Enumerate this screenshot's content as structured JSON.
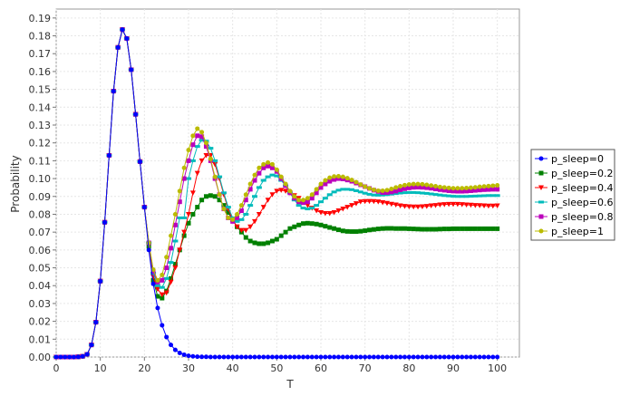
{
  "chart_data": {
    "type": "line",
    "title": "",
    "xlabel": "T",
    "ylabel": "Probability",
    "xlim": [
      0,
      105
    ],
    "ylim": [
      0,
      0.195
    ],
    "x_ticks": [
      0,
      10,
      20,
      30,
      40,
      50,
      60,
      70,
      80,
      90,
      100
    ],
    "y_ticks": [
      0.0,
      0.01,
      0.02,
      0.03,
      0.04,
      0.05,
      0.06,
      0.07,
      0.08,
      0.09,
      0.1,
      0.11,
      0.12,
      0.13,
      0.14,
      0.15,
      0.16,
      0.17,
      0.18,
      0.19
    ],
    "x_tick_labels": [
      "0",
      "10",
      "20",
      "30",
      "40",
      "50",
      "60",
      "70",
      "80",
      "90",
      "100"
    ],
    "y_tick_labels": [
      "0.00",
      "0.01",
      "0.02",
      "0.03",
      "0.04",
      "0.05",
      "0.06",
      "0.07",
      "0.08",
      "0.09",
      "0.10",
      "0.11",
      "0.12",
      "0.13",
      "0.14",
      "0.15",
      "0.16",
      "0.17",
      "0.18",
      "0.19"
    ],
    "grid": true,
    "legend_position": "right",
    "x_start": 0,
    "x_end": 100,
    "series": [
      {
        "name": "p_sleep=0",
        "color": "#0000ff",
        "marker": "circle",
        "values": [
          0.0,
          0.0,
          0.0,
          0.0,
          0.0,
          0.0001,
          0.0004,
          0.0015,
          0.0068,
          0.0195,
          0.0425,
          0.0755,
          0.113,
          0.149,
          0.1735,
          0.1835,
          0.1785,
          0.161,
          0.136,
          0.1095,
          0.084,
          0.06,
          0.041,
          0.0275,
          0.0178,
          0.0112,
          0.0068,
          0.004,
          0.0023,
          0.0013,
          0.0007,
          0.0004,
          0.0002,
          0.0001,
          0.0001,
          0.0,
          0.0,
          0.0,
          0.0,
          0.0,
          0.0,
          0.0,
          0.0,
          0.0,
          0.0,
          0.0,
          0.0,
          0.0,
          0.0,
          0.0,
          0.0,
          0.0,
          0.0,
          0.0,
          0.0,
          0.0,
          0.0,
          0.0,
          0.0,
          0.0,
          0.0,
          0.0,
          0.0,
          0.0,
          0.0,
          0.0,
          0.0,
          0.0,
          0.0,
          0.0,
          0.0,
          0.0,
          0.0,
          0.0,
          0.0,
          0.0,
          0.0,
          0.0,
          0.0,
          0.0,
          0.0,
          0.0,
          0.0,
          0.0,
          0.0,
          0.0,
          0.0,
          0.0,
          0.0,
          0.0,
          0.0,
          0.0,
          0.0,
          0.0,
          0.0,
          0.0,
          0.0,
          0.0,
          0.0,
          0.0,
          0.0
        ]
      },
      {
        "name": "p_sleep=0.2",
        "color": "#008000",
        "marker": "square",
        "values": [
          0.0,
          0.0,
          0.0,
          0.0,
          0.0,
          0.0001,
          0.0004,
          0.0015,
          0.0068,
          0.0195,
          0.0425,
          0.0755,
          0.113,
          0.149,
          0.1735,
          0.1835,
          0.1785,
          0.161,
          0.136,
          0.1095,
          0.084,
          0.062,
          0.043,
          0.034,
          0.033,
          0.037,
          0.044,
          0.052,
          0.06,
          0.068,
          0.075,
          0.08,
          0.084,
          0.088,
          0.09,
          0.0905,
          0.09,
          0.088,
          0.085,
          0.081,
          0.077,
          0.073,
          0.07,
          0.067,
          0.065,
          0.064,
          0.0635,
          0.0635,
          0.064,
          0.065,
          0.066,
          0.068,
          0.07,
          0.072,
          0.073,
          0.074,
          0.0748,
          0.075,
          0.0748,
          0.0745,
          0.074,
          0.0733,
          0.0726,
          0.072,
          0.0713,
          0.0707,
          0.0704,
          0.0703,
          0.0703,
          0.0705,
          0.0708,
          0.0712,
          0.0715,
          0.0718,
          0.072,
          0.0721,
          0.0721,
          0.072,
          0.072,
          0.072,
          0.0719,
          0.0718,
          0.0717,
          0.0716,
          0.0716,
          0.0716,
          0.0716,
          0.0717,
          0.0718,
          0.0718,
          0.0719,
          0.0719,
          0.0719,
          0.0719,
          0.0719,
          0.0719,
          0.0719,
          0.0719,
          0.0719,
          0.0719,
          0.0719
        ]
      },
      {
        "name": "p_sleep=0.4",
        "color": "#ff0000",
        "marker": "triangle-down",
        "values": [
          0.0,
          0.0,
          0.0,
          0.0,
          0.0,
          0.0001,
          0.0004,
          0.0015,
          0.0068,
          0.0195,
          0.0425,
          0.0755,
          0.113,
          0.149,
          0.1735,
          0.1835,
          0.1785,
          0.161,
          0.136,
          0.1095,
          0.084,
          0.063,
          0.045,
          0.038,
          0.035,
          0.036,
          0.042,
          0.05,
          0.06,
          0.07,
          0.08,
          0.092,
          0.103,
          0.11,
          0.113,
          0.113,
          0.108,
          0.1,
          0.091,
          0.083,
          0.077,
          0.073,
          0.071,
          0.071,
          0.073,
          0.076,
          0.08,
          0.084,
          0.088,
          0.091,
          0.093,
          0.0935,
          0.093,
          0.092,
          0.0905,
          0.089,
          0.087,
          0.085,
          0.0835,
          0.082,
          0.081,
          0.0805,
          0.0805,
          0.081,
          0.082,
          0.083,
          0.084,
          0.085,
          0.086,
          0.087,
          0.0872,
          0.0873,
          0.0872,
          0.087,
          0.0866,
          0.0862,
          0.0857,
          0.0853,
          0.0848,
          0.0845,
          0.0843,
          0.0842,
          0.0842,
          0.0843,
          0.0845,
          0.0848,
          0.085,
          0.0853,
          0.0855,
          0.0856,
          0.0856,
          0.0856,
          0.0855,
          0.0853,
          0.0852,
          0.085,
          0.0849,
          0.0848,
          0.0847,
          0.0847,
          0.0848
        ]
      },
      {
        "name": "p_sleep=0.6",
        "color": "#00bbbb",
        "marker": "dash",
        "values": [
          0.0,
          0.0,
          0.0,
          0.0,
          0.0,
          0.0001,
          0.0004,
          0.0015,
          0.0068,
          0.0195,
          0.0425,
          0.0755,
          0.113,
          0.149,
          0.1735,
          0.1835,
          0.1785,
          0.161,
          0.136,
          0.1095,
          0.084,
          0.064,
          0.047,
          0.04,
          0.039,
          0.044,
          0.053,
          0.065,
          0.078,
          0.078,
          0.1,
          0.11,
          0.118,
          0.1215,
          0.121,
          0.117,
          0.11,
          0.101,
          0.092,
          0.084,
          0.078,
          0.076,
          0.077,
          0.08,
          0.085,
          0.09,
          0.095,
          0.099,
          0.101,
          0.102,
          0.1015,
          0.099,
          0.096,
          0.092,
          0.088,
          0.085,
          0.0835,
          0.083,
          0.0835,
          0.085,
          0.087,
          0.089,
          0.091,
          0.0925,
          0.0935,
          0.094,
          0.094,
          0.0938,
          0.0932,
          0.0925,
          0.0918,
          0.0912,
          0.0908,
          0.0907,
          0.0908,
          0.091,
          0.0913,
          0.0916,
          0.0919,
          0.0921,
          0.0922,
          0.0922,
          0.0921,
          0.0919,
          0.0917,
          0.0914,
          0.0911,
          0.0908,
          0.0905,
          0.0903,
          0.0901,
          0.09,
          0.09,
          0.09,
          0.0901,
          0.0902,
          0.0903,
          0.0904,
          0.0905,
          0.0905,
          0.0905
        ]
      },
      {
        "name": "p_sleep=0.8",
        "color": "#bb00bb",
        "marker": "square",
        "values": [
          0.0,
          0.0,
          0.0,
          0.0,
          0.0,
          0.0001,
          0.0004,
          0.0015,
          0.0068,
          0.0195,
          0.0425,
          0.0755,
          0.113,
          0.149,
          0.1735,
          0.1835,
          0.1785,
          0.161,
          0.136,
          0.1095,
          0.084,
          0.064,
          0.048,
          0.042,
          0.043,
          0.05,
          0.061,
          0.074,
          0.087,
          0.1,
          0.11,
          0.119,
          0.124,
          0.1235,
          0.118,
          0.11,
          0.1,
          0.091,
          0.083,
          0.078,
          0.076,
          0.078,
          0.082,
          0.088,
          0.094,
          0.099,
          0.103,
          0.106,
          0.107,
          0.106,
          0.104,
          0.1,
          0.096,
          0.092,
          0.089,
          0.087,
          0.0865,
          0.087,
          0.089,
          0.092,
          0.095,
          0.097,
          0.0985,
          0.0995,
          0.1,
          0.0998,
          0.0992,
          0.0985,
          0.0975,
          0.0965,
          0.0955,
          0.0945,
          0.0935,
          0.0928,
          0.0922,
          0.0922,
          0.0925,
          0.093,
          0.0937,
          0.0943,
          0.0948,
          0.0951,
          0.0952,
          0.0951,
          0.0949,
          0.0946,
          0.0942,
          0.0938,
          0.0935,
          0.0932,
          0.093,
          0.0929,
          0.0929,
          0.093,
          0.0932,
          0.0934,
          0.0936,
          0.0938,
          0.0939,
          0.094,
          0.094
        ]
      },
      {
        "name": "p_sleep=1",
        "color": "#bbbb00",
        "marker": "circle",
        "values": [
          0.0,
          0.0,
          0.0,
          0.0,
          0.0,
          0.0001,
          0.0004,
          0.0015,
          0.0068,
          0.0195,
          0.0425,
          0.0755,
          0.113,
          0.149,
          0.1735,
          0.1835,
          0.1785,
          0.161,
          0.136,
          0.1095,
          0.084,
          0.064,
          0.049,
          0.043,
          0.046,
          0.056,
          0.068,
          0.08,
          0.093,
          0.106,
          0.116,
          0.124,
          0.128,
          0.126,
          0.12,
          0.111,
          0.101,
          0.091,
          0.083,
          0.078,
          0.077,
          0.08,
          0.085,
          0.091,
          0.097,
          0.102,
          0.106,
          0.108,
          0.109,
          0.108,
          0.105,
          0.101,
          0.097,
          0.093,
          0.09,
          0.088,
          0.088,
          0.089,
          0.091,
          0.094,
          0.097,
          0.099,
          0.1005,
          0.1012,
          0.1013,
          0.101,
          0.1002,
          0.0992,
          0.098,
          0.0967,
          0.0955,
          0.0945,
          0.0937,
          0.0932,
          0.0932,
          0.0935,
          0.0942,
          0.095,
          0.0957,
          0.0963,
          0.0967,
          0.0969,
          0.0969,
          0.0968,
          0.0965,
          0.0961,
          0.0957,
          0.0953,
          0.095,
          0.0948,
          0.0946,
          0.0946,
          0.0946,
          0.0947,
          0.0949,
          0.0951,
          0.0954,
          0.0956,
          0.0958,
          0.096,
          0.0962
        ]
      }
    ]
  }
}
